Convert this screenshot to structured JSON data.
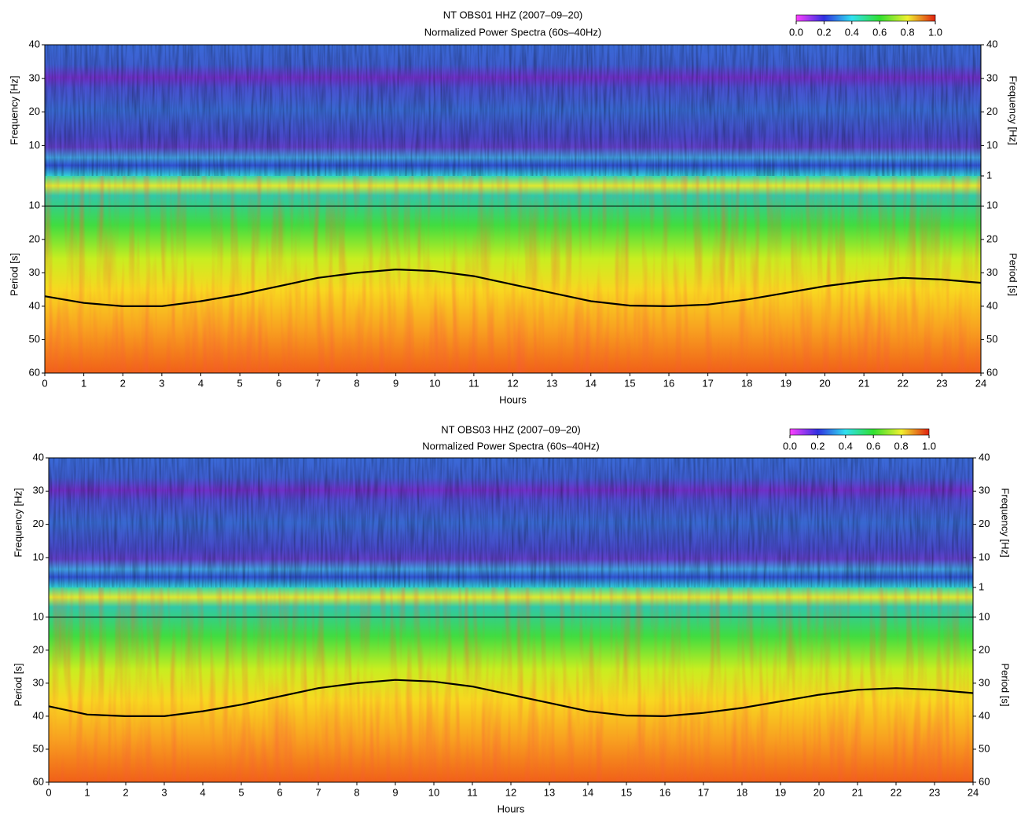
{
  "chart_data": [
    {
      "type": "spectrogram",
      "title": "NT OBS01 HHZ (2007‒09‒20)",
      "subtitle": "Normalized Power Spectra (60s‒40Hz)",
      "xlabel": "Hours",
      "xlim": [
        0,
        24
      ],
      "xticks": [
        0,
        1,
        2,
        3,
        4,
        5,
        6,
        7,
        8,
        9,
        10,
        11,
        12,
        13,
        14,
        15,
        16,
        17,
        18,
        19,
        20,
        21,
        22,
        23,
        24
      ],
      "frequency_axis": {
        "label": "Frequency [Hz]",
        "lim": [
          1,
          40
        ],
        "ticks": [
          10,
          20,
          30,
          40
        ]
      },
      "period_axis": {
        "label": "Period [s]",
        "lim": [
          1,
          60
        ],
        "ticks": [
          1,
          10,
          20,
          30,
          40,
          50,
          60
        ]
      },
      "hline": 10,
      "colorbar": {
        "lim": [
          0,
          1
        ],
        "colormap": [
          "#ff40ff",
          "#3030e0",
          "#30e0f0",
          "#30e030",
          "#f0f030",
          "#e02010"
        ],
        "ticks": [
          {
            "value": 0,
            "label": "0.0"
          },
          {
            "value": 0.2,
            "label": "0.2"
          },
          {
            "value": 0.4,
            "label": "0.4"
          },
          {
            "value": 0.6,
            "label": "0.6"
          },
          {
            "value": 0.8,
            "label": "0.8"
          },
          {
            "value": 1,
            "label": "1.0"
          }
        ]
      },
      "series": [
        {
          "color": "#000000",
          "x": [
            0,
            1,
            2,
            3,
            4,
            5,
            6,
            7,
            8,
            9,
            10,
            11,
            12,
            13,
            14,
            15,
            16,
            17,
            18,
            19,
            20,
            21,
            22,
            23,
            24
          ],
          "values": [
            37,
            39,
            40,
            40,
            38.5,
            36.5,
            34,
            31.5,
            30,
            29,
            29.5,
            31,
            33.5,
            36,
            38.5,
            39.8,
            40,
            39.5,
            38,
            36,
            34,
            32.5,
            31.5,
            32,
            33
          ]
        }
      ]
    },
    {
      "type": "spectrogram",
      "title": "NT OBS03 HHZ (2007‒09‒20)",
      "subtitle": "Normalized Power Spectra (60s‒40Hz)",
      "xlabel": "Hours",
      "xlim": [
        0,
        24
      ],
      "xticks": [
        0,
        1,
        2,
        3,
        4,
        5,
        6,
        7,
        8,
        9,
        10,
        11,
        12,
        13,
        14,
        15,
        16,
        17,
        18,
        19,
        20,
        21,
        22,
        23,
        24
      ],
      "frequency_axis": {
        "label": "Frequency [Hz]",
        "lim": [
          1,
          40
        ],
        "ticks": [
          10,
          20,
          30,
          40
        ]
      },
      "period_axis": {
        "label": "Period [s]",
        "lim": [
          1,
          60
        ],
        "ticks": [
          1,
          10,
          20,
          30,
          40,
          50,
          60
        ]
      },
      "hline": 10,
      "colorbar": {
        "lim": [
          0,
          1
        ],
        "colormap": [
          "#ff40ff",
          "#3030e0",
          "#30e0f0",
          "#30e030",
          "#f0f030",
          "#e02010"
        ],
        "ticks": [
          {
            "value": 0,
            "label": "0.0"
          },
          {
            "value": 0.2,
            "label": "0.2"
          },
          {
            "value": 0.4,
            "label": "0.4"
          },
          {
            "value": 0.6,
            "label": "0.6"
          },
          {
            "value": 0.8,
            "label": "0.8"
          },
          {
            "value": 1,
            "label": "1.0"
          }
        ]
      },
      "series": [
        {
          "color": "#000000",
          "x": [
            0,
            1,
            2,
            3,
            4,
            5,
            6,
            7,
            8,
            9,
            10,
            11,
            12,
            13,
            14,
            15,
            16,
            17,
            18,
            19,
            20,
            21,
            22,
            23,
            24
          ],
          "values": [
            37,
            39.5,
            40,
            40,
            38.5,
            36.5,
            34,
            31.5,
            30,
            29,
            29.5,
            31,
            33.5,
            36,
            38.5,
            39.8,
            40,
            39,
            37.5,
            35.5,
            33.5,
            32,
            31.5,
            32,
            33
          ]
        }
      ]
    }
  ]
}
